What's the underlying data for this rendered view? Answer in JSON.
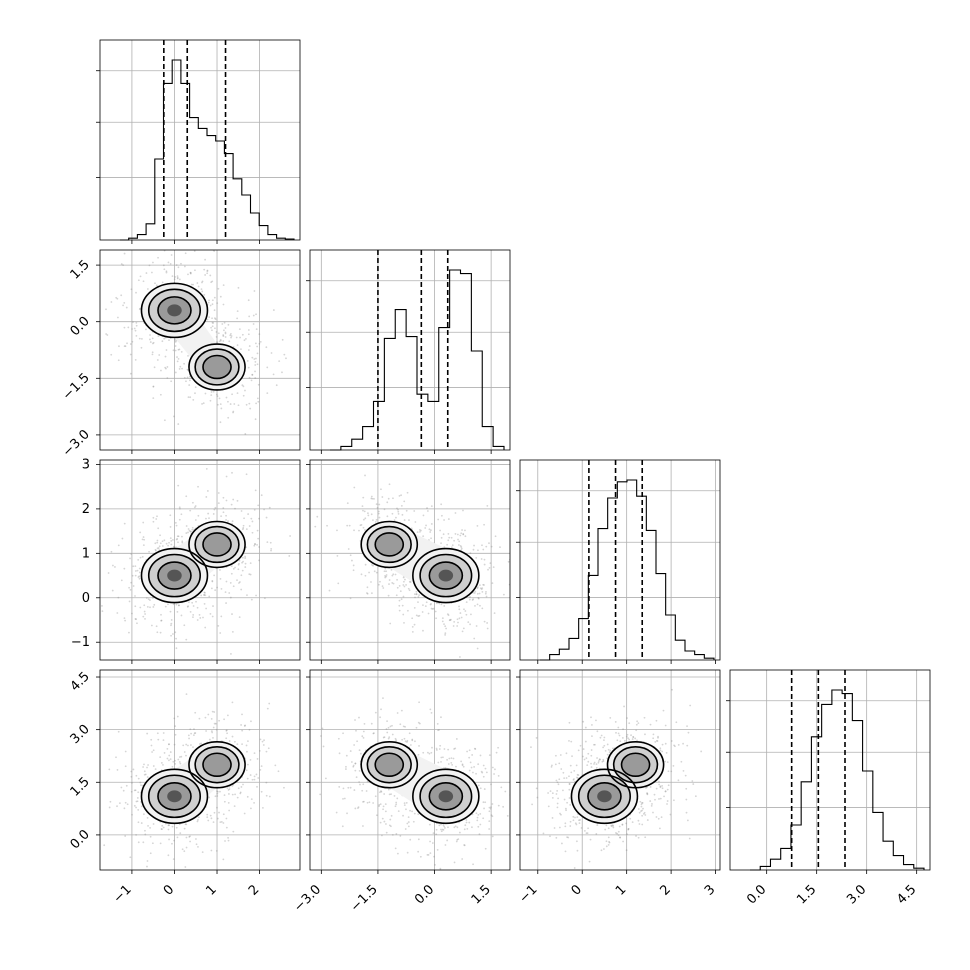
{
  "chart_data": {
    "type": "corner",
    "parameters": [
      {
        "xlim": [
          -1.75,
          2.95
        ],
        "ticks": [
          -1,
          0,
          1,
          2
        ],
        "tick_labels": [
          "−1",
          "0",
          "1",
          "2"
        ],
        "quantiles": [
          -0.25,
          0.3,
          1.2
        ],
        "hist": [
          0,
          0.01,
          0.03,
          0.09,
          0.45,
          0.87,
          1.0,
          0.87,
          0.68,
          0.62,
          0.58,
          0.55,
          0.48,
          0.34,
          0.25,
          0.15,
          0.08,
          0.03,
          0.01,
          0.005
        ]
      },
      {
        "ylim": [
          -3.4,
          1.9
        ],
        "xlim": [
          -3.3,
          2.0
        ],
        "ticks": [
          -3.0,
          -1.5,
          0.0,
          1.5
        ],
        "tick_labels": [
          "−3.0",
          "−1.5",
          "0.0",
          "1.5"
        ],
        "quantiles": [
          -1.5,
          -0.35,
          0.35
        ],
        "hist": [
          0,
          0.02,
          0.06,
          0.13,
          0.27,
          0.62,
          0.78,
          0.63,
          0.31,
          0.27,
          0.68,
          1.0,
          0.98,
          0.55,
          0.13,
          0.02
        ]
      },
      {
        "xlim": [
          -1.4,
          3.1
        ],
        "ylim": [
          -1.4,
          3.1
        ],
        "ticks": [
          -1,
          0,
          1,
          2,
          3
        ],
        "tick_labels": [
          "−1",
          "0",
          "1",
          "2",
          "3"
        ],
        "quantiles": [
          0.15,
          0.75,
          1.35
        ],
        "hist": [
          0,
          0.03,
          0.06,
          0.12,
          0.23,
          0.47,
          0.73,
          0.9,
          0.99,
          1.0,
          0.91,
          0.72,
          0.48,
          0.25,
          0.11,
          0.05,
          0.03,
          0.01
        ]
      },
      {
        "xlim": [
          -1.1,
          4.9
        ],
        "ylim": [
          -1.0,
          4.7
        ],
        "ticks": [
          0.0,
          1.5,
          3.0,
          4.5
        ],
        "tick_labels": [
          "0.0",
          "1.5",
          "3.0",
          "4.5"
        ],
        "quantiles": [
          0.75,
          1.55,
          2.35
        ],
        "hist": [
          0,
          0.02,
          0.06,
          0.12,
          0.25,
          0.49,
          0.74,
          0.92,
          1.0,
          0.98,
          0.83,
          0.55,
          0.32,
          0.16,
          0.08,
          0.03,
          0.01
        ]
      }
    ],
    "grid": true,
    "pair_panels": [
      {
        "row": 1,
        "col": 0,
        "modes": [
          {
            "x": 0.0,
            "y": 0.3,
            "w": 0.6
          },
          {
            "x": 1.0,
            "y": -1.2,
            "w": 0.4
          }
        ]
      },
      {
        "row": 2,
        "col": 0,
        "modes": [
          {
            "x": 0.0,
            "y": 0.5,
            "w": 0.6
          },
          {
            "x": 1.0,
            "y": 1.2,
            "w": 0.4
          }
        ]
      },
      {
        "row": 2,
        "col": 1,
        "modes": [
          {
            "x": -1.2,
            "y": 1.2,
            "w": 0.4
          },
          {
            "x": 0.3,
            "y": 0.5,
            "w": 0.6
          }
        ]
      },
      {
        "row": 3,
        "col": 0,
        "modes": [
          {
            "x": 0.0,
            "y": 1.1,
            "w": 0.6
          },
          {
            "x": 1.0,
            "y": 2.0,
            "w": 0.4
          }
        ]
      },
      {
        "row": 3,
        "col": 1,
        "modes": [
          {
            "x": -1.2,
            "y": 2.0,
            "w": 0.4
          },
          {
            "x": 0.3,
            "y": 1.1,
            "w": 0.6
          }
        ]
      },
      {
        "row": 3,
        "col": 2,
        "modes": [
          {
            "x": 0.5,
            "y": 1.1,
            "w": 0.6
          },
          {
            "x": 1.2,
            "y": 2.0,
            "w": 0.4
          }
        ]
      }
    ],
    "contour_levels": [
      0.3,
      0.5,
      0.8,
      0.95
    ]
  }
}
